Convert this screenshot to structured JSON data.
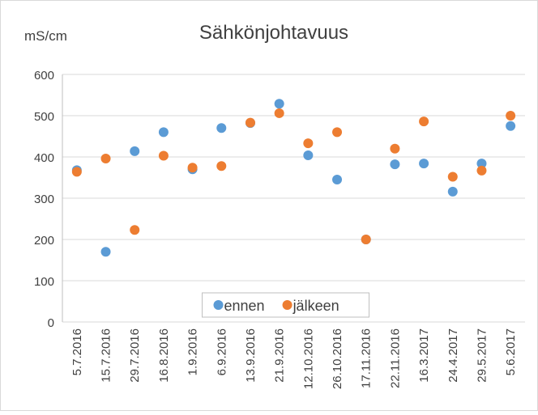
{
  "chart_data": {
    "type": "scatter",
    "title": "Sähkönjohtavuus",
    "y_axis_label": "mS/cm",
    "categories": [
      "5.7.2016",
      "15.7.2016",
      "29.7.2016",
      "16.8.2016",
      "1.9.2016",
      "6.9.2016",
      "13.9.2016",
      "21.9.2016",
      "12.10.2016",
      "26.10.2016",
      "17.11.2016",
      "22.11.2016",
      "16.3.2017",
      "24.4.2017",
      "29.5.2017",
      "5.6.2017"
    ],
    "series": [
      {
        "name": "ennen",
        "color": "#5b9bd5",
        "values": [
          368,
          170,
          414,
          460,
          370,
          470,
          482,
          529,
          404,
          345,
          200,
          382,
          384,
          316,
          384,
          475
        ]
      },
      {
        "name": "jälkeen",
        "color": "#ed7d31",
        "values": [
          364,
          396,
          223,
          403,
          374,
          378,
          483,
          506,
          433,
          460,
          200,
          420,
          486,
          352,
          367,
          500
        ]
      }
    ],
    "ylim": [
      0,
      600
    ],
    "yticks": [
      0,
      100,
      200,
      300,
      400,
      500,
      600
    ],
    "grid": true,
    "legend": "bottom"
  }
}
